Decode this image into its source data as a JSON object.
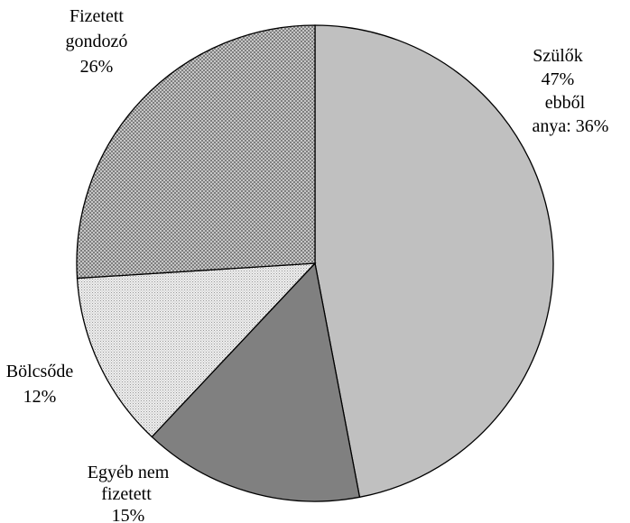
{
  "chart_data": {
    "type": "pie",
    "title": "",
    "start_angle_deg": 0,
    "direction": "clockwise",
    "slices": [
      {
        "name": "Szülők",
        "value": 47,
        "fill": "#c0c0c0",
        "pattern": "solid",
        "label_lines": [
          "Szülők",
          "47%",
          "ebből",
          "anya: 36%"
        ]
      },
      {
        "name": "Egyéb nem fizetett",
        "value": 15,
        "fill": "#808080",
        "pattern": "solid",
        "label_lines": [
          "Egyéb nem",
          "fizetett",
          "15%"
        ]
      },
      {
        "name": "Bölcsőde",
        "value": 12,
        "fill": "#e6e6e6",
        "pattern": "fine-dots",
        "label_lines": [
          "Bölcsőde",
          "12%"
        ]
      },
      {
        "name": "Fizetett gondozó",
        "value": 26,
        "fill": "#bdbdbd",
        "pattern": "crosshatch",
        "label_lines": [
          "Fizetett",
          "gondozó",
          "26%"
        ]
      }
    ],
    "outline_color": "#000000",
    "legend": "none"
  }
}
